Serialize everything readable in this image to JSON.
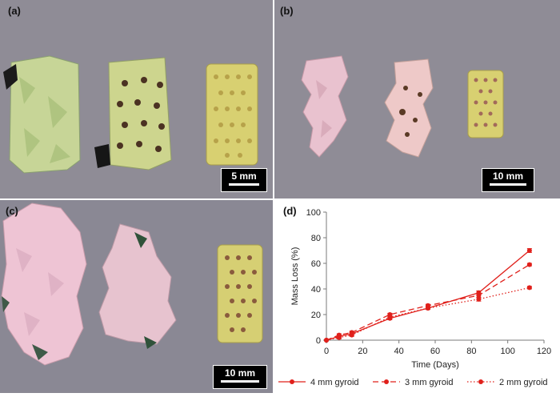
{
  "panels": {
    "a": {
      "label": "(a)",
      "scale": "5 mm"
    },
    "b": {
      "label": "(b)",
      "scale": "10 mm"
    },
    "c": {
      "label": "(c)",
      "scale": "10 mm"
    },
    "d": {
      "label": "(d)"
    }
  },
  "colors": {
    "photo_background": "#8f8c96",
    "sample_green": "#c9d79a",
    "sample_yellow": "#d6cf73",
    "sample_pink": "#e9c2cf",
    "pore": "#5a3a25",
    "series": "#e0201b"
  },
  "chart_data": {
    "type": "line",
    "xlabel": "Time (Days)",
    "ylabel": "Mass Loss (%)",
    "xlim": [
      0,
      120
    ],
    "ylim": [
      0,
      100
    ],
    "xticks": [
      0,
      20,
      40,
      60,
      80,
      100,
      120
    ],
    "yticks": [
      0,
      20,
      40,
      60,
      80,
      100
    ],
    "grid": false,
    "legend_position": "bottom",
    "x": [
      0,
      7,
      14,
      35,
      56,
      84,
      112
    ],
    "series": [
      {
        "name": "4 mm gyroid",
        "style": "solid",
        "values": [
          0,
          3,
          5,
          17,
          25,
          37,
          70
        ],
        "errors": [
          0,
          1,
          1,
          1,
          1,
          1.5,
          1.5
        ]
      },
      {
        "name": "3 mm gyroid",
        "style": "dashed",
        "values": [
          0,
          4,
          6,
          20,
          27,
          35,
          59
        ],
        "errors": [
          0,
          1,
          1,
          1,
          1,
          1.5,
          1
        ]
      },
      {
        "name": "2 mm gyroid",
        "style": "dotted",
        "values": [
          0,
          2,
          4,
          18,
          25,
          32,
          41
        ],
        "errors": [
          0,
          1,
          1,
          1,
          1,
          1.5,
          1
        ]
      }
    ]
  }
}
